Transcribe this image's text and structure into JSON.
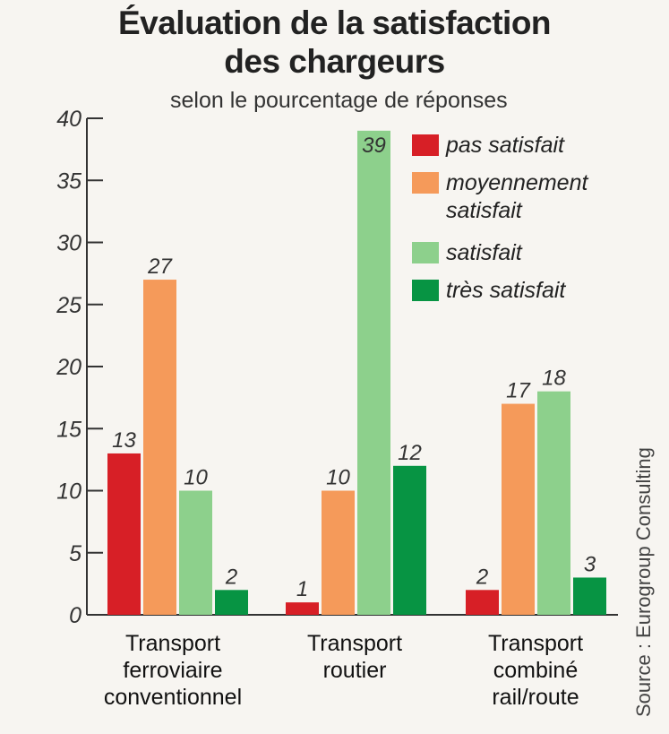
{
  "chart_data": {
    "type": "bar",
    "title_lines": [
      "Évaluation de la satisfaction",
      "des chargeurs"
    ],
    "subtitle": "selon le pourcentage de réponses",
    "source": "Source : Eurogroup Consulting",
    "ylim": [
      0,
      40
    ],
    "yticks": [
      "0",
      "5",
      "10",
      "15",
      "20",
      "25",
      "30",
      "35",
      "40"
    ],
    "categories": [
      [
        "Transport",
        "ferroviaire",
        "conventionnel"
      ],
      [
        "Transport",
        "routier"
      ],
      [
        "Transport",
        "combiné",
        "rail/route"
      ]
    ],
    "series": [
      {
        "name": [
          "pas satisfait"
        ],
        "color": "#d71f26",
        "values": [
          13,
          1,
          2
        ]
      },
      {
        "name": [
          "moyennement",
          "satisfait"
        ],
        "color": "#f59a5a",
        "values": [
          27,
          10,
          17
        ]
      },
      {
        "name": [
          "satisfait"
        ],
        "color": "#8dd08c",
        "values": [
          10,
          39,
          18
        ]
      },
      {
        "name": [
          "très satisfait"
        ],
        "color": "#079443",
        "values": [
          2,
          12,
          3
        ]
      }
    ],
    "legend_position": "top-right",
    "grid": false
  }
}
